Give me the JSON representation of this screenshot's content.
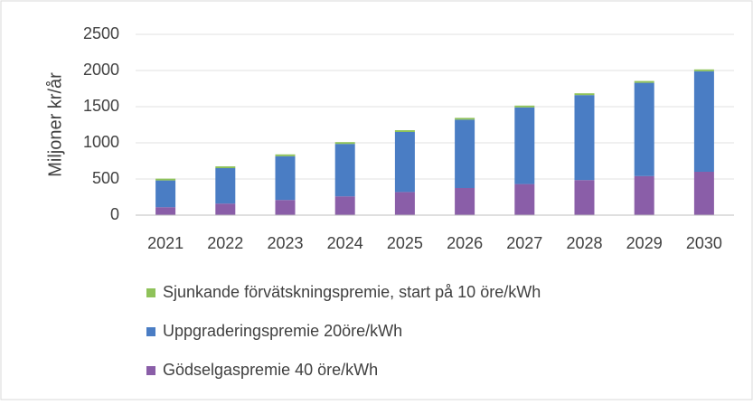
{
  "chart_data": {
    "type": "stacked-bar",
    "y_label": "Miljoner kr/år",
    "categories": [
      "2021",
      "2022",
      "2023",
      "2024",
      "2025",
      "2026",
      "2027",
      "2028",
      "2029",
      "2030"
    ],
    "series": [
      {
        "name": "Gödselgaspremie 40 öre/kWh",
        "color": "#8a5ea8",
        "values": [
          110,
          160,
          210,
          260,
          320,
          375,
          430,
          485,
          540,
          600
        ]
      },
      {
        "name": "Uppgraderingspremie 20öre/kWh",
        "color": "#4a7dc4",
        "values": [
          370,
          490,
          605,
          725,
          830,
          945,
          1060,
          1175,
          1290,
          1390
        ]
      },
      {
        "name": "Sjunkande förvätskningspremie, start på 10 öre/kWh",
        "color": "#8fc25a",
        "values": [
          25,
          25,
          25,
          25,
          25,
          25,
          25,
          25,
          25,
          25
        ]
      }
    ],
    "ylim": [
      0,
      2500
    ],
    "yticks": [
      0,
      500,
      1000,
      1500,
      2000,
      2500
    ],
    "grid": true
  }
}
